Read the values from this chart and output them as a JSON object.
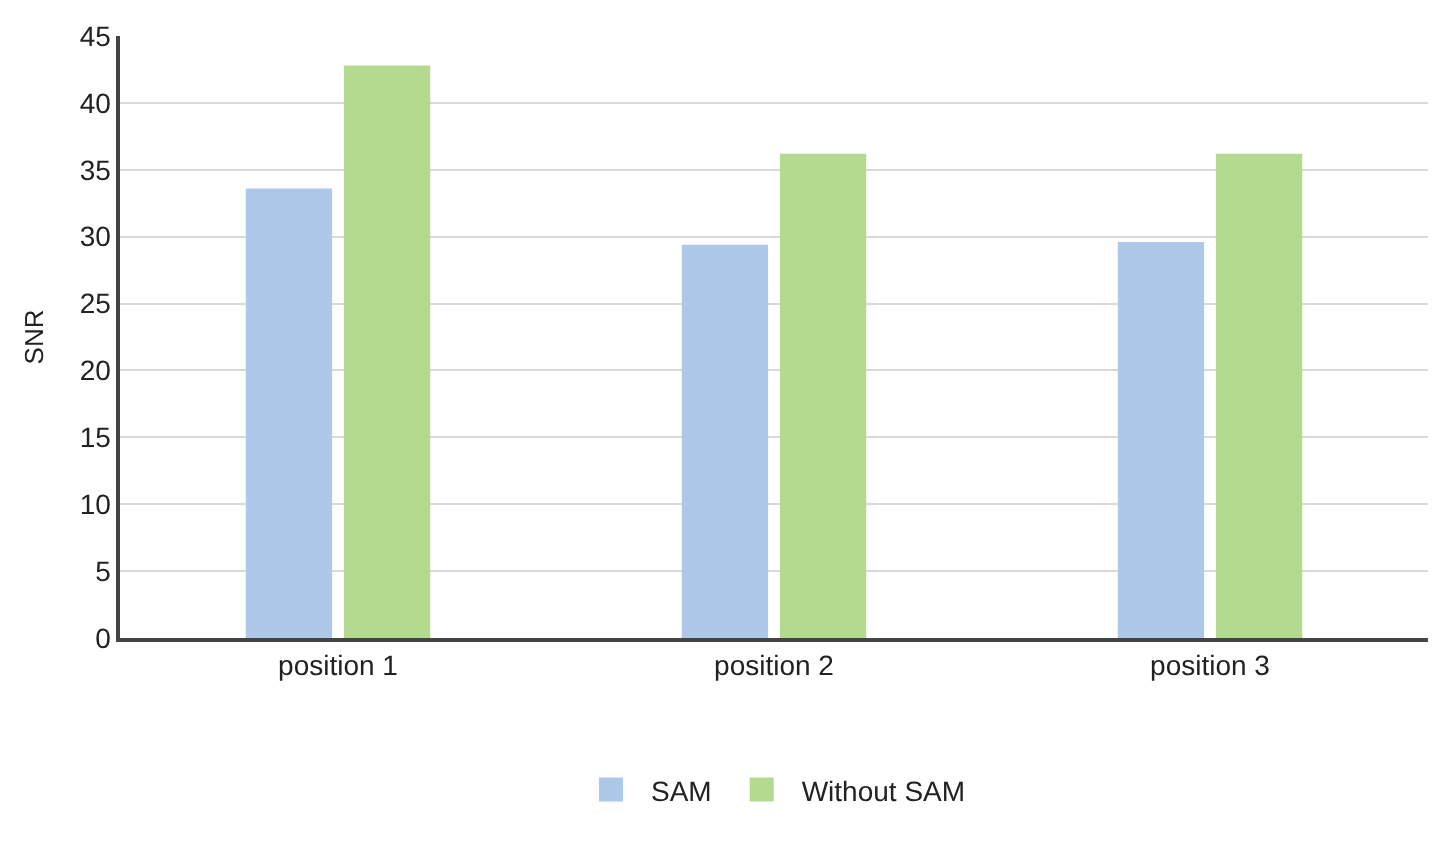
{
  "chart_data": {
    "type": "bar",
    "ylabel": "SNR",
    "categories": [
      "position 1",
      "position 2",
      "position 3"
    ],
    "series": [
      {
        "name": "SAM",
        "color": "#aec8ea",
        "values": [
          33.6,
          29.4,
          29.6
        ]
      },
      {
        "name": "Without SAM",
        "color": "#b3da8f",
        "values": [
          42.8,
          36.2,
          36.2
        ]
      }
    ],
    "ylim": [
      0,
      45
    ],
    "yticks": [
      0,
      5,
      10,
      15,
      20,
      25,
      30,
      35,
      40,
      45
    ],
    "grid": "y",
    "legend": "bottom"
  }
}
